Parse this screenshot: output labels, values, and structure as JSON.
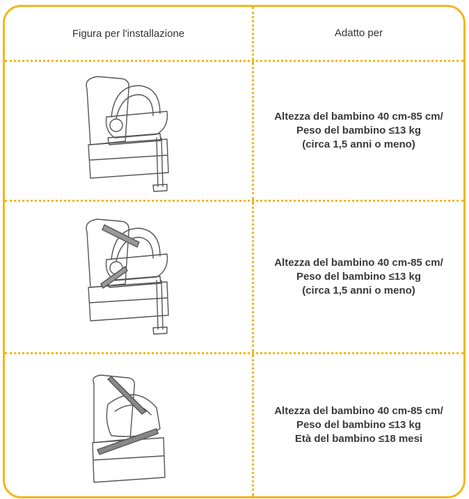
{
  "table": {
    "header": [
      "Figura per l'installazione",
      "Adatto per"
    ],
    "rows": [
      [
        "Altezza del bambino 40 cm-85 cm/",
        "Peso del bambino ≤13 kg",
        "(circa 1,5 anni o meno)"
      ],
      [
        "Altezza del bambino 40 cm-85 cm/",
        "Peso del bambino ≤13 kg",
        "(circa 1,5 anni o meno)"
      ],
      [
        "Altezza del bambino 40 cm-85 cm/",
        "Peso del bambino ≤13 kg",
        "Età del bambino ≤18 mesi"
      ]
    ]
  }
}
